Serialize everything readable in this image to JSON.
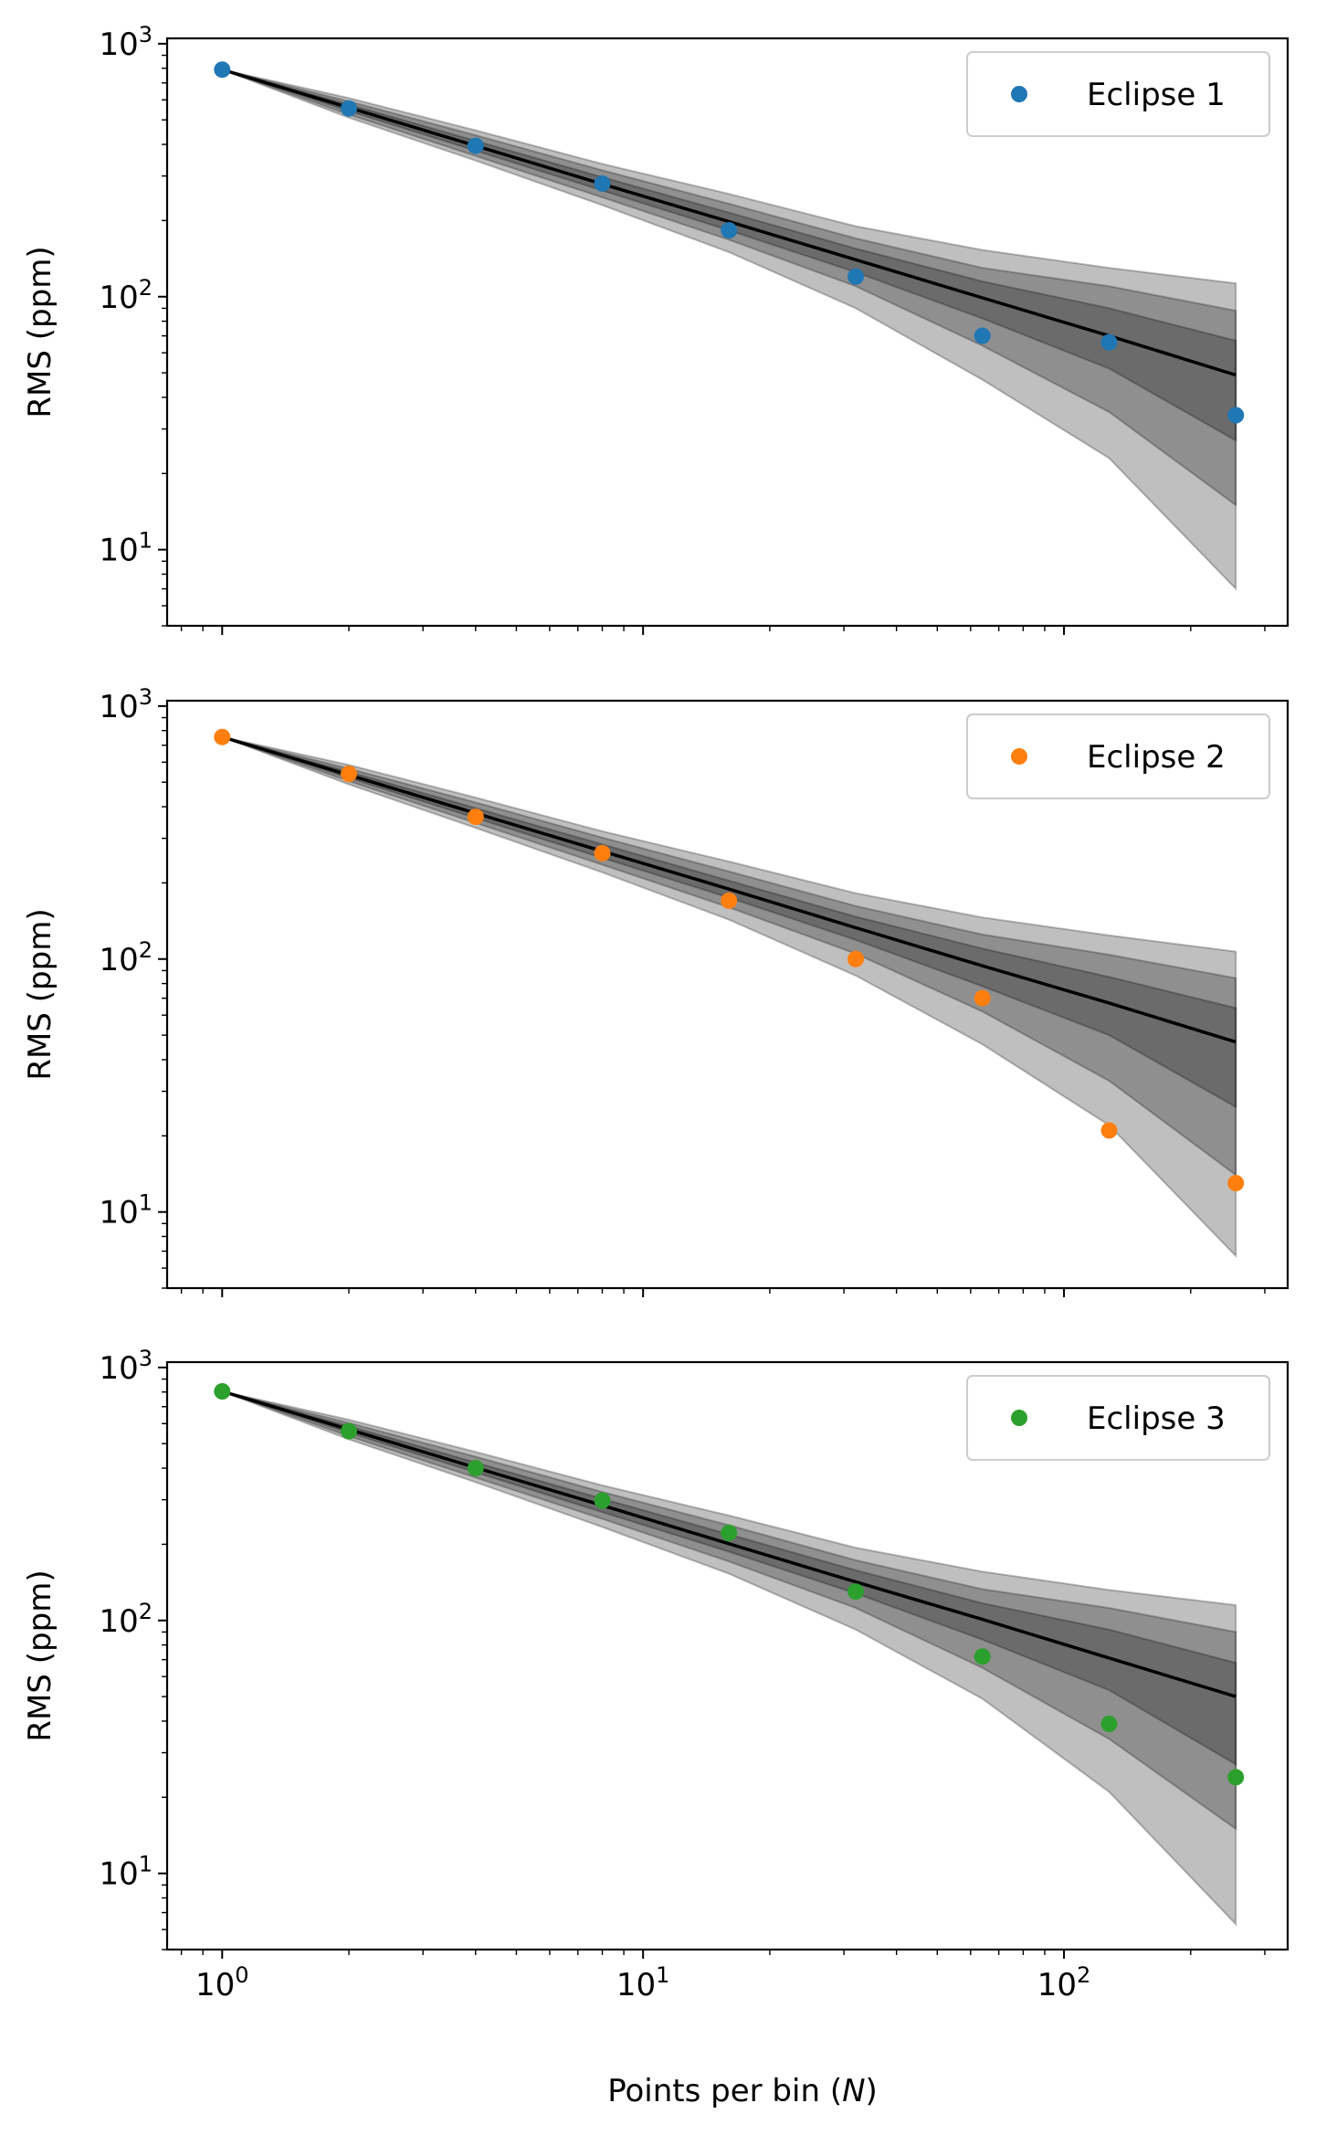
{
  "figure": {
    "xlabel_prefix": "Points per bin (",
    "xlabel_var": "N",
    "xlabel_suffix": ")"
  },
  "chart_data": [
    {
      "type": "scatter",
      "title": "",
      "legend_label": "Eclipse 1",
      "legend_position": "top-right",
      "color": "#1f77b4",
      "xlabel": "Points per bin (N)",
      "ylabel": "RMS (ppm)",
      "xscale": "log",
      "yscale": "log",
      "xlim": [
        0.74,
        340
      ],
      "ylim": [
        5.0,
        1050
      ],
      "x_major_ticks": [
        {
          "base": "10",
          "exp": "0",
          "value": 1
        },
        {
          "base": "10",
          "exp": "1",
          "value": 10
        },
        {
          "base": "10",
          "exp": "2",
          "value": 100
        }
      ],
      "y_major_ticks": [
        {
          "base": "10",
          "exp": "1",
          "value": 10
        },
        {
          "base": "10",
          "exp": "2",
          "value": 100
        },
        {
          "base": "10",
          "exp": "3",
          "value": 1000
        }
      ],
      "x": [
        1,
        2,
        4,
        8,
        16,
        32,
        64,
        128,
        256
      ],
      "rms": [
        790,
        555,
        395,
        280,
        183,
        120,
        70,
        66,
        34
      ],
      "expected": [
        790,
        559,
        395,
        279,
        198,
        140,
        99,
        70,
        49
      ],
      "bands": [
        {
          "sigma": 3,
          "lower": [
            790,
            510,
            345,
            230,
            150,
            90,
            47,
            23,
            7
          ],
          "upper": [
            790,
            610,
            455,
            335,
            255,
            190,
            153,
            130,
            113
          ]
        },
        {
          "sigma": 2,
          "lower": [
            790,
            525,
            360,
            247,
            168,
            110,
            64,
            35,
            15
          ],
          "upper": [
            790,
            592,
            435,
            316,
            233,
            170,
            130,
            110,
            88
          ]
        },
        {
          "sigma": 1,
          "lower": [
            790,
            542,
            378,
            263,
            183,
            125,
            82,
            52,
            27
          ],
          "upper": [
            790,
            575,
            413,
            297,
            215,
            155,
            115,
            90,
            67
          ]
        }
      ]
    },
    {
      "type": "scatter",
      "title": "",
      "legend_label": "Eclipse 2",
      "legend_position": "top-right",
      "color": "#ff7f0e",
      "xlabel": "Points per bin (N)",
      "ylabel": "RMS (ppm)",
      "xscale": "log",
      "yscale": "log",
      "xlim": [
        0.74,
        340
      ],
      "ylim": [
        5.0,
        1050
      ],
      "x_major_ticks": [
        {
          "base": "10",
          "exp": "0",
          "value": 1
        },
        {
          "base": "10",
          "exp": "1",
          "value": 10
        },
        {
          "base": "10",
          "exp": "2",
          "value": 100
        }
      ],
      "y_major_ticks": [
        {
          "base": "10",
          "exp": "1",
          "value": 10
        },
        {
          "base": "10",
          "exp": "2",
          "value": 100
        },
        {
          "base": "10",
          "exp": "3",
          "value": 1000
        }
      ],
      "x": [
        1,
        2,
        4,
        8,
        16,
        32,
        64,
        128,
        256
      ],
      "rms": [
        755,
        540,
        365,
        262,
        170,
        100,
        70,
        21,
        13
      ],
      "expected": [
        755,
        534,
        377,
        267,
        189,
        133,
        94,
        67,
        47
      ],
      "bands": [
        {
          "sigma": 3,
          "lower": [
            755,
            490,
            330,
            220,
            143,
            86,
            46,
            22,
            6.7
          ],
          "upper": [
            755,
            585,
            435,
            320,
            243,
            182,
            146,
            124,
            107
          ]
        },
        {
          "sigma": 2,
          "lower": [
            755,
            505,
            345,
            236,
            160,
            105,
            62,
            33,
            14
          ],
          "upper": [
            755,
            566,
            416,
            302,
            222,
            162,
            125,
            104,
            84
          ]
        },
        {
          "sigma": 1,
          "lower": [
            755,
            520,
            361,
            251,
            175,
            119,
            78,
            50,
            26
          ],
          "upper": [
            755,
            550,
            395,
            284,
            204,
            147,
            110,
            85,
            64
          ]
        }
      ]
    },
    {
      "type": "scatter",
      "title": "",
      "legend_label": "Eclipse 3",
      "legend_position": "top-right",
      "color": "#2ca02c",
      "xlabel": "Points per bin (N)",
      "ylabel": "RMS (ppm)",
      "xscale": "log",
      "yscale": "log",
      "xlim": [
        0.74,
        340
      ],
      "ylim": [
        5.0,
        1050
      ],
      "x_major_ticks": [
        {
          "base": "10",
          "exp": "0",
          "value": 1
        },
        {
          "base": "10",
          "exp": "1",
          "value": 10
        },
        {
          "base": "10",
          "exp": "2",
          "value": 100
        }
      ],
      "y_major_ticks": [
        {
          "base": "10",
          "exp": "1",
          "value": 10
        },
        {
          "base": "10",
          "exp": "2",
          "value": 100
        },
        {
          "base": "10",
          "exp": "3",
          "value": 1000
        }
      ],
      "x": [
        1,
        2,
        4,
        8,
        16,
        32,
        64,
        128,
        256
      ],
      "rms": [
        805,
        560,
        400,
        298,
        222,
        130,
        72,
        39,
        24
      ],
      "expected": [
        805,
        569,
        402,
        285,
        201,
        142,
        101,
        71,
        50
      ],
      "bands": [
        {
          "sigma": 3,
          "lower": [
            805,
            520,
            352,
            234,
            153,
            92,
            49,
            21,
            6.3
          ],
          "upper": [
            805,
            622,
            464,
            342,
            260,
            194,
            156,
            132,
            115
          ]
        },
        {
          "sigma": 2,
          "lower": [
            805,
            535,
            367,
            252,
            171,
            112,
            65,
            34,
            15
          ],
          "upper": [
            805,
            604,
            444,
            322,
            238,
            173,
            133,
            112,
            90
          ]
        },
        {
          "sigma": 1,
          "lower": [
            805,
            552,
            385,
            268,
            187,
            128,
            84,
            53,
            27
          ],
          "upper": [
            805,
            586,
            421,
            303,
            219,
            158,
            117,
            92,
            68
          ]
        }
      ]
    }
  ]
}
